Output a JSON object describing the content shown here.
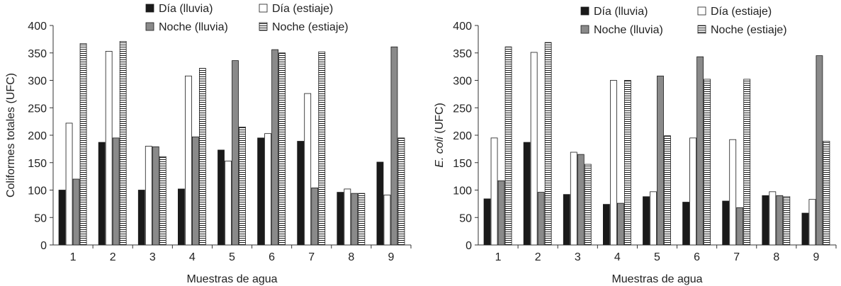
{
  "colors": {
    "dia_lluvia": "#1a1a1a",
    "dia_estiaje": "#ffffff",
    "noche_lluvia": "#8a8a8a",
    "noche_estiaje": "#ffffff",
    "axis": "#333333"
  },
  "chart_data": [
    {
      "type": "bar",
      "xlabel": "Muestras de agua",
      "ylabel": "Coliformes totales (UFC)",
      "ylabel_italic": "",
      "ylim": [
        0,
        400
      ],
      "yticks": [
        0,
        50,
        100,
        150,
        200,
        250,
        300,
        350,
        400
      ],
      "categories": [
        "1",
        "2",
        "3",
        "4",
        "5",
        "6",
        "7",
        "8",
        "9"
      ],
      "legend_position": "top",
      "series": [
        {
          "name": "Día (lluvia)",
          "pattern": "solid-black",
          "values": [
            100,
            187,
            100,
            102,
            173,
            195,
            189,
            96,
            151
          ]
        },
        {
          "name": "Día (estiaje)",
          "pattern": "white",
          "values": [
            222,
            353,
            180,
            308,
            153,
            203,
            276,
            102,
            91
          ]
        },
        {
          "name": "Noche (lluvia)",
          "pattern": "gray",
          "values": [
            120,
            195,
            179,
            197,
            336,
            356,
            104,
            94,
            361
          ]
        },
        {
          "name": "Noche (estiaje)",
          "pattern": "horizontal-stripes",
          "values": [
            367,
            371,
            161,
            322,
            215,
            350,
            352,
            94,
            195
          ]
        }
      ]
    },
    {
      "type": "bar",
      "xlabel": "Muestras de agua",
      "ylabel": " (UFC)",
      "ylabel_italic": "E. coli",
      "ylim": [
        0,
        400
      ],
      "yticks": [
        0,
        50,
        100,
        150,
        200,
        250,
        300,
        350,
        400
      ],
      "categories": [
        "1",
        "2",
        "3",
        "4",
        "5",
        "6",
        "7",
        "8",
        "9"
      ],
      "legend_position": "top",
      "series": [
        {
          "name": "Día (lluvia)",
          "pattern": "solid-black",
          "values": [
            84,
            187,
            92,
            74,
            88,
            78,
            80,
            90,
            58
          ]
        },
        {
          "name": "Día (estiaje)",
          "pattern": "white",
          "values": [
            195,
            351,
            169,
            300,
            97,
            195,
            192,
            97,
            83
          ]
        },
        {
          "name": "Noche (lluvia)",
          "pattern": "gray",
          "values": [
            117,
            96,
            165,
            76,
            308,
            343,
            68,
            90,
            345
          ]
        },
        {
          "name": "Noche (estiaje)",
          "pattern": "horizontal-stripes",
          "values": [
            361,
            369,
            147,
            300,
            199,
            302,
            302,
            88,
            189
          ]
        }
      ]
    }
  ]
}
